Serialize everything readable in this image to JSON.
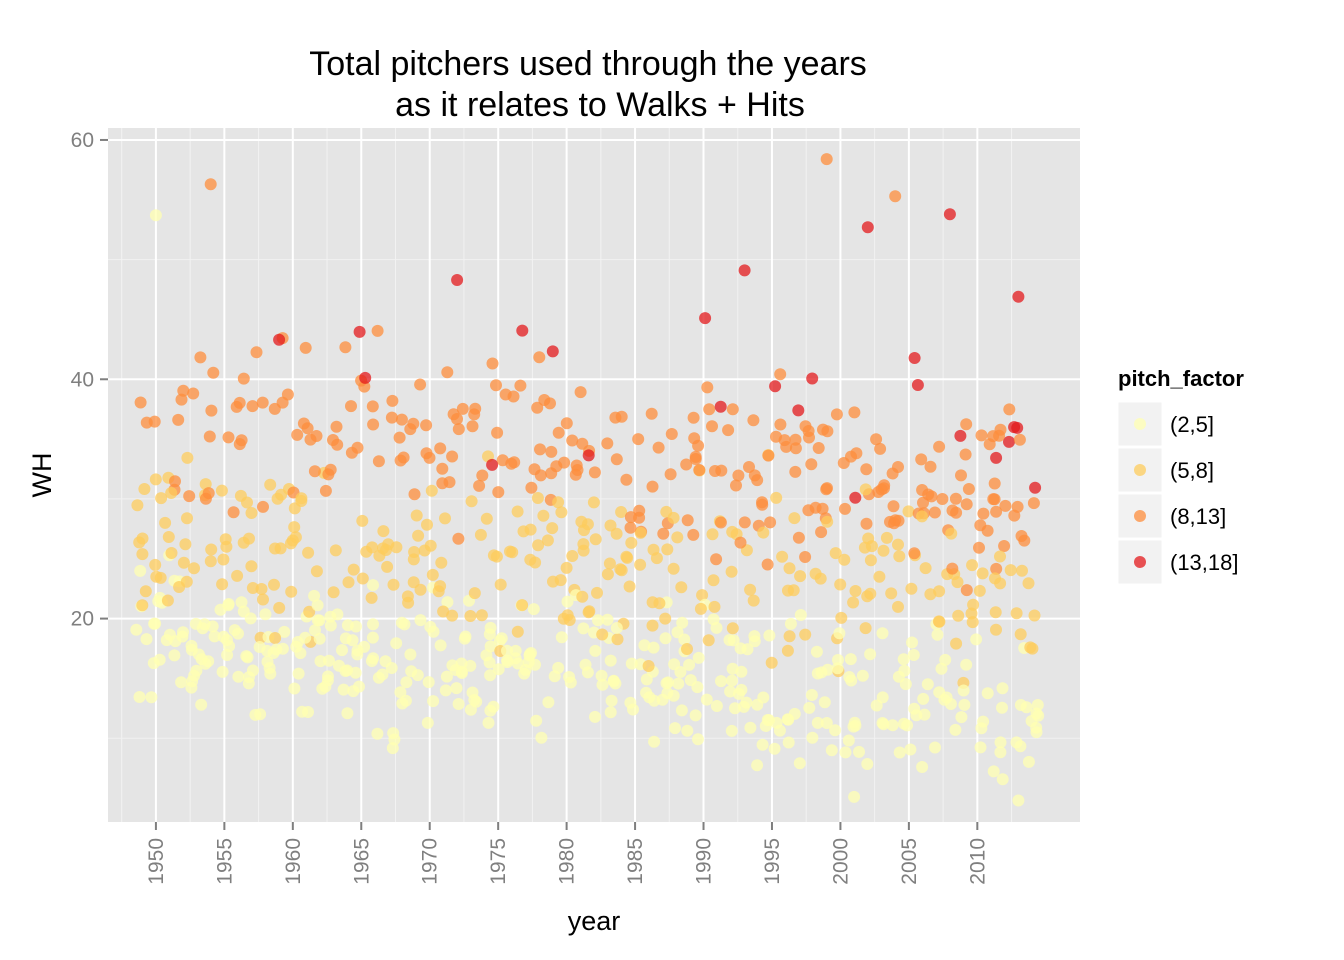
{
  "chart_data": {
    "type": "scatter",
    "title_lines": [
      "Total pitchers used through the years",
      "as it relates to Walks + Hits"
    ],
    "xlabel": "year",
    "ylabel": "WH",
    "xlim": [
      1946.5,
      2017.5
    ],
    "ylim": [
      3,
      61
    ],
    "x_ticks": [
      1950,
      1955,
      1960,
      1965,
      1970,
      1975,
      1980,
      1985,
      1990,
      1995,
      2000,
      2005,
      2010
    ],
    "x_tick_labels": [
      "1950",
      "1955",
      "1960",
      "1965",
      "1970",
      "1975",
      "1980",
      "1985",
      "1990",
      "1995",
      "2000",
      "2005",
      "2010"
    ],
    "y_ticks": [
      20,
      40,
      60
    ],
    "y_tick_labels": [
      "20",
      "40",
      "60"
    ],
    "grid": true,
    "panel_background": "#e5e5e5",
    "legend": {
      "title": "pitch_factor",
      "position": "right",
      "entries": [
        {
          "label": "(2,5]",
          "color": "#ffffb2"
        },
        {
          "label": "(5,8]",
          "color": "#fecc5c"
        },
        {
          "label": "(8,13]",
          "color": "#fd8d3c"
        },
        {
          "label": "(13,18]",
          "color": "#e31a1c"
        }
      ]
    },
    "points_per_year": 14,
    "year_range": [
      1949,
      2014
    ],
    "series_note": "dense jittered cloud of per-game WH values per year, colored by pitch_factor",
    "series": [
      {
        "name": "(2,5]",
        "y_center_1950": 18,
        "y_center_2010": 13,
        "spread": 5
      },
      {
        "name": "(5,8]",
        "y_center_1950": 27,
        "y_center_2010": 22,
        "spread": 6
      },
      {
        "name": "(8,13]",
        "y_center_1950": 37,
        "y_center_2010": 31,
        "spread": 6
      },
      {
        "name": "(13,18]",
        "y_center_1950": 42,
        "y_center_2010": 35,
        "spread": 7
      }
    ],
    "highlight_points": [
      {
        "x": 1954,
        "y": 56.3,
        "factor": "(8,13]"
      },
      {
        "x": 1999,
        "y": 58.4,
        "factor": "(8,13]"
      },
      {
        "x": 2002,
        "y": 52.7,
        "factor": "(13,18]"
      },
      {
        "x": 2008,
        "y": 53.8,
        "factor": "(13,18]"
      },
      {
        "x": 2004,
        "y": 55.3,
        "factor": "(8,13]"
      },
      {
        "x": 1959,
        "y": 43.3,
        "factor": "(13,18]"
      },
      {
        "x": 1972,
        "y": 48.3,
        "factor": "(13,18]"
      },
      {
        "x": 1993,
        "y": 49.1,
        "factor": "(13,18]"
      },
      {
        "x": 2013,
        "y": 46.9,
        "factor": "(13,18]"
      },
      {
        "x": 1950,
        "y": 53.7,
        "factor": "(2,5]"
      },
      {
        "x": 2013,
        "y": 4.8,
        "factor": "(2,5]"
      },
      {
        "x": 2001,
        "y": 5.1,
        "factor": "(2,5]"
      }
    ]
  }
}
